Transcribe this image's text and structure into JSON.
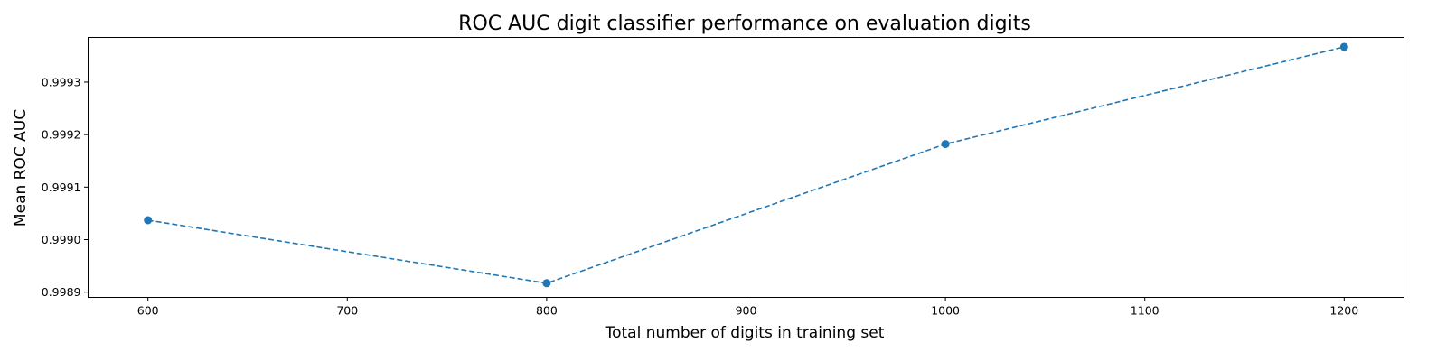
{
  "chart_data": {
    "type": "line",
    "title": "ROC AUC digit classifier performance on evaluation digits",
    "xlabel": "Total number of digits in training set",
    "ylabel": "Mean ROC AUC",
    "x": [
      600,
      800,
      1000,
      1200
    ],
    "series": [
      {
        "values": [
          0.999037,
          0.998917,
          0.999182,
          0.999367
        ],
        "color": "#1f77b4",
        "line_style": "dashed",
        "marker": "circle"
      }
    ],
    "xlim": [
      570,
      1230
    ],
    "ylim": [
      0.99889,
      0.999385
    ],
    "xticks": [
      600,
      700,
      800,
      900,
      1000,
      1100,
      1200
    ],
    "xtick_labels": [
      "600",
      "700",
      "800",
      "900",
      "1000",
      "1100",
      "1200"
    ],
    "yticks": [
      0.9989,
      0.999,
      0.9991,
      0.9992,
      0.9993
    ],
    "ytick_labels": [
      "0.9989",
      "0.9990",
      "0.9991",
      "0.9992",
      "0.9993"
    ],
    "grid": false
  }
}
